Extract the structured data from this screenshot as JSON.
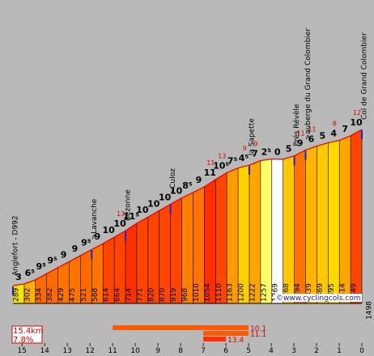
{
  "chart_data": {
    "type": "area",
    "x_axis": {
      "km_ticks": [
        "15",
        "14",
        "13",
        "12",
        "11",
        "10",
        "9",
        "8",
        "7",
        "6",
        "5",
        "4",
        "3",
        "2",
        "1",
        "0"
      ]
    },
    "segments": [
      {
        "alt_start": 289,
        "alt_end": 302,
        "grade": "3",
        "grade_max": "",
        "color": "#f5e300"
      },
      {
        "alt_start": 302,
        "alt_end": 334,
        "grade": "6⁵",
        "grade_max": "",
        "color": "#ffb000"
      },
      {
        "alt_start": 334,
        "alt_end": 382,
        "grade": "9⁵",
        "grade_max": "",
        "color": "#ff6a00"
      },
      {
        "alt_start": 382,
        "alt_end": 429,
        "grade": "9⁵",
        "grade_max": "",
        "color": "#ff6a00"
      },
      {
        "alt_start": 429,
        "alt_end": 475,
        "grade": "9",
        "grade_max": "",
        "color": "#ff7400"
      },
      {
        "alt_start": 475,
        "alt_end": 521,
        "grade": "9",
        "grade_max": "",
        "color": "#ff7400"
      },
      {
        "alt_start": 521,
        "alt_end": 568,
        "grade": "9⁵",
        "grade_max": "",
        "color": "#ff6a00"
      },
      {
        "alt_start": 568,
        "alt_end": 614,
        "grade": "9",
        "grade_max": "",
        "color": "#ff7400"
      },
      {
        "alt_start": 614,
        "alt_end": 664,
        "grade": "10",
        "grade_max": "",
        "color": "#ff4500"
      },
      {
        "alt_start": 664,
        "alt_end": 714,
        "grade": "10",
        "grade_max": "13",
        "color": "#ff4500"
      },
      {
        "alt_start": 714,
        "alt_end": 771,
        "grade": "11⁵",
        "grade_max": "",
        "color": "#ff3000"
      },
      {
        "alt_start": 771,
        "alt_end": 820,
        "grade": "10",
        "grade_max": "",
        "color": "#ff4500"
      },
      {
        "alt_start": 820,
        "alt_end": 870,
        "grade": "10",
        "grade_max": "",
        "color": "#ff4500"
      },
      {
        "alt_start": 870,
        "alt_end": 919,
        "grade": "10",
        "grade_max": "",
        "color": "#ff4500"
      },
      {
        "alt_start": 919,
        "alt_end": 968,
        "grade": "10",
        "grade_max": "",
        "color": "#ff4500"
      },
      {
        "alt_start": 968,
        "alt_end": 1010,
        "grade": "8⁵",
        "grade_max": "",
        "color": "#ff7f00"
      },
      {
        "alt_start": 1010,
        "alt_end": 1054,
        "grade": "9",
        "grade_max": "",
        "color": "#ff7400"
      },
      {
        "alt_start": 1054,
        "alt_end": 1110,
        "grade": "11",
        "grade_max": "11",
        "color": "#ff3000"
      },
      {
        "alt_start": 1110,
        "alt_end": 1163,
        "grade": "10⁵",
        "grade_max": "13",
        "color": "#ff4500"
      },
      {
        "alt_start": 1163,
        "alt_end": 1200,
        "grade": "7⁵",
        "grade_max": "",
        "color": "#ff9a00"
      },
      {
        "alt_start": 1200,
        "alt_end": 1222,
        "grade": "4⁵",
        "grade_max": "9",
        "color": "#ffd000"
      },
      {
        "alt_start": 1222,
        "alt_end": 1257,
        "grade": "7",
        "grade_max": "9",
        "color": "#ffa500"
      },
      {
        "alt_start": 1257,
        "alt_end": 1269,
        "grade": "2⁵",
        "grade_max": "",
        "color": "#ffff66"
      },
      {
        "alt_start": 1269,
        "alt_end": 1268,
        "grade": "0",
        "grade_max": "",
        "color": "#ffffff"
      },
      {
        "alt_start": 1268,
        "alt_end": 1294,
        "grade": "5",
        "grade_max": "",
        "color": "#ffc800"
      },
      {
        "alt_start": 1294,
        "alt_end": 1339,
        "grade": "9",
        "grade_max": "11",
        "color": "#ff7400"
      },
      {
        "alt_start": 1339,
        "alt_end": 1369,
        "grade": "6",
        "grade_max": "11",
        "color": "#ffb400"
      },
      {
        "alt_start": 1369,
        "alt_end": 1395,
        "grade": "5",
        "grade_max": "",
        "color": "#ffc800"
      },
      {
        "alt_start": 1395,
        "alt_end": 1414,
        "grade": "4",
        "grade_max": "8",
        "color": "#ffd800"
      },
      {
        "alt_start": 1414,
        "alt_end": 1449,
        "grade": "7",
        "grade_max": "",
        "color": "#ffa500"
      },
      {
        "alt_start": 1449,
        "alt_end": 1498,
        "grade": "10",
        "grade_max": "12",
        "color": "#ff4500"
      }
    ],
    "places": [
      {
        "name": "Anglefort - D992",
        "at_segment": 0
      },
      {
        "name": ">Lavanche",
        "at_segment": 7
      },
      {
        "name": "Bezonne",
        "at_segment": 10
      },
      {
        "name": ">Culoz",
        "at_segment": 14
      },
      {
        "name": "la Sapette",
        "at_segment": 21
      },
      {
        "name": "Prés Révèle",
        "at_segment": 25
      },
      {
        "name": ">auberge du Grand Colombier",
        "at_segment": 26
      },
      {
        "name": "Col de Grand Colombier",
        "at_segment": 31
      }
    ],
    "summary": {
      "distance": "15.4km",
      "avg_grade": "7.8%"
    },
    "max_grade_bars": [
      {
        "value": "10.1",
        "from_km": 11,
        "to_km": 5
      },
      {
        "value": "11.1",
        "from_km": 7,
        "to_km": 5
      },
      {
        "value": "13.4",
        "from_km": 7,
        "to_km": 6
      }
    ],
    "credit": "©www.cyclingcols.com"
  }
}
